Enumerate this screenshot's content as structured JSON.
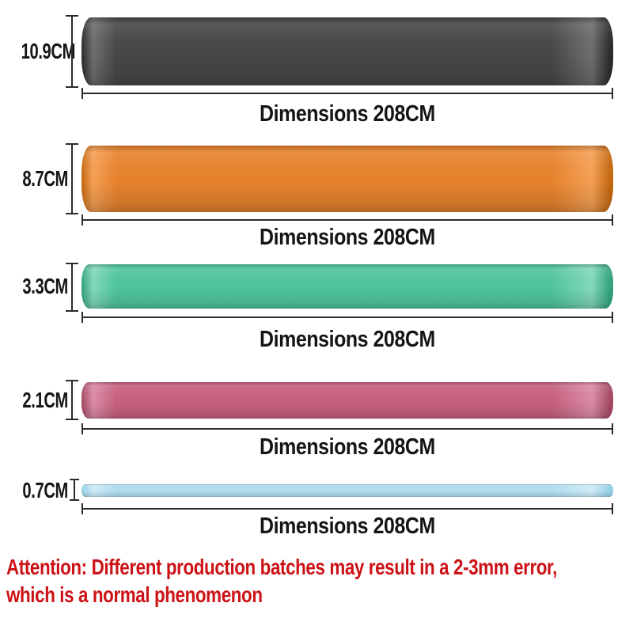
{
  "colors": {
    "line": "#2b2b2b",
    "text": "#151515",
    "attention_red": "#cc1216",
    "background": "#ffffff"
  },
  "bands": [
    {
      "id": "black",
      "width_label": "10.9CM",
      "dimension_label": "Dimensions 208CM",
      "color": "#474747",
      "highlight_color": "#6e6e6e",
      "edge_color": "#2b2b2b"
    },
    {
      "id": "orange",
      "width_label": "8.7CM",
      "dimension_label": "Dimensions 208CM",
      "color": "#e6822c",
      "highlight_color": "#f4a055",
      "edge_color": "#c4680f"
    },
    {
      "id": "green",
      "width_label": "3.3CM",
      "dimension_label": "Dimensions 208CM",
      "color": "#4fc49b",
      "highlight_color": "#82d8bb",
      "edge_color": "#33a27c"
    },
    {
      "id": "pink",
      "width_label": "2.1CM",
      "dimension_label": "Dimensions 208CM",
      "color": "#c6607f",
      "highlight_color": "#d98da5",
      "edge_color": "#a64863"
    },
    {
      "id": "blue",
      "width_label": "0.7CM",
      "dimension_label": "Dimensions 208CM",
      "color": "#aedcee",
      "highlight_color": "#cdebf7",
      "edge_color": "#95cfe7"
    }
  ],
  "attention": {
    "line1": "Attention: Different production batches may result in a 2-3mm error,",
    "line2": "which is a normal phenomenon"
  }
}
